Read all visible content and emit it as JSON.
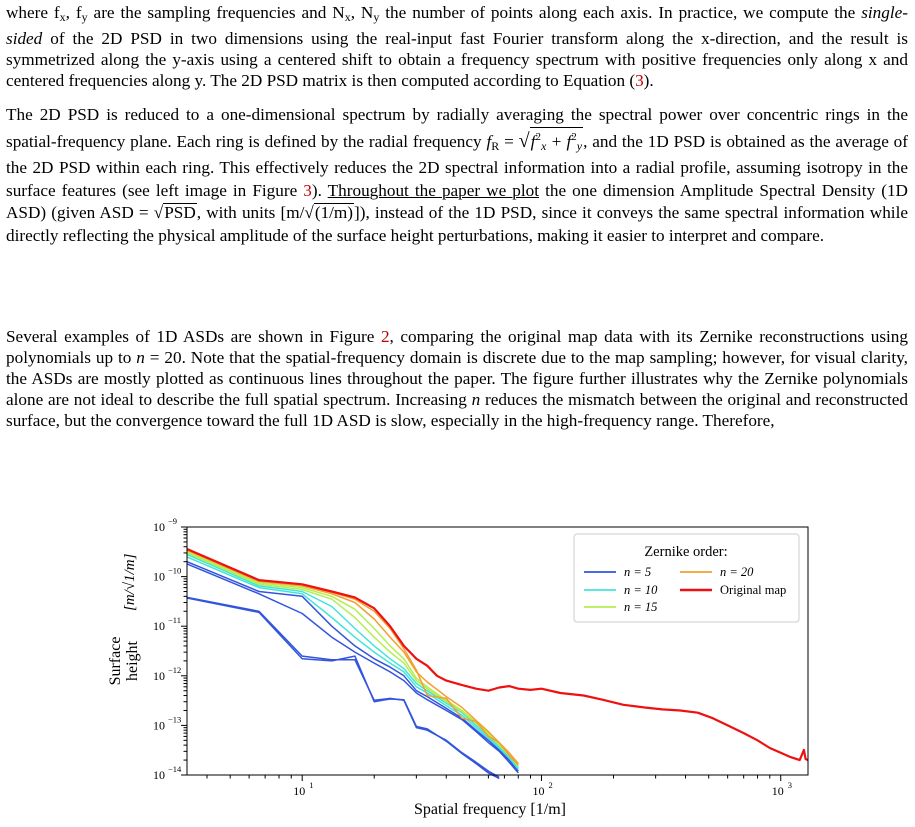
{
  "paragraphs": {
    "p1": {
      "l1a": "where f",
      "l1b": "x",
      "l1c": ", f",
      "l1d": "y",
      "l1e": " are the sampling frequencies and N",
      "l1f": "x",
      "l1g": ", N",
      "l1h": "y",
      "l1i": " the number of points along each axis. In practice, we compute the ",
      "em": "single-sided",
      "l2": " of the 2D PSD in two dimensions using the real-input fast Fourier transform along the x-direction, and the result is symmetrized along the y-axis using a centered shift to obtain a frequency spectrum with positive frequencies only along x and centered frequencies along y. The 2D PSD matrix is then computed according to Equation (",
      "ref": "3",
      "end": ")."
    },
    "p2": {
      "a": "The 2D PSD is reduced to a one-dimensional spectrum by radially averaging the spectral power over concentric rings in the spatial-frequency plane.  Each ring is defined by the radial frequency ",
      "fr": "f",
      "frsub": "R",
      "eq": " = ",
      "sq_a": "f",
      "sq_b": "2",
      "sq_c": "x",
      "sq_d": " + f",
      "sq_e": "2",
      "sq_f": "y",
      "b": ", and the 1D PSD is obtained as the average of the 2D PSD within each ring. This effectively reduces the 2D spectral information into a radial profile, assuming isotropy in the surface features (see left image in Figure ",
      "ref": "3",
      "c": "). ",
      "ul": "Throughout the paper we plot",
      "d": " the one dimension Amplitude Spectral Density (1D ASD) (given ASD = ",
      "psd": "PSD",
      "e": ", with units [m/",
      "unit": "(1/m)",
      "f": "]), instead of the 1D PSD, since it conveys the same spectral information while directly reflecting the physical amplitude of the surface height perturbations, making it easier to interpret and compare."
    },
    "p3": {
      "a": "Several examples of 1D ASDs are shown in Figure ",
      "ref": "2",
      "b": ", comparing the original map data with its Zernike reconstructions using polynomials up to ",
      "n1": "n",
      "c": " = 20. Note that the spatial-frequency domain is discrete due to the map sampling; however, for visual clarity, the ASDs are mostly plotted as continuous lines throughout the paper. The figure further illustrates why the Zernike polynomials alone are not ideal to describe the full spatial spectrum. Increasing ",
      "n2": "n",
      "d": " reduces the mismatch between the original and reconstructed surface, but the convergence toward the full 1D ASD is slow, especially in the high-frequency range. Therefore,"
    }
  },
  "chart_data": {
    "type": "line",
    "xlabel": "Spatial frequency [1/m]",
    "ylabel_line1": "Surface",
    "ylabel_line2": "height",
    "ylabel_unit": "[m/√1/m]",
    "x_scale": "log",
    "y_scale": "log",
    "xlim": [
      3.3,
      1300
    ],
    "ylim": [
      1e-14,
      1e-09
    ],
    "x_ticks": [
      {
        "v": 10,
        "label": "10",
        "exp": "1"
      },
      {
        "v": 100,
        "label": "10",
        "exp": "2"
      },
      {
        "v": 1000,
        "label": "10",
        "exp": "3"
      }
    ],
    "y_ticks": [
      {
        "v": 1e-09,
        "label": "10",
        "exp": "−9"
      },
      {
        "v": 1e-10,
        "label": "10",
        "exp": "−10"
      },
      {
        "v": 1e-11,
        "label": "10",
        "exp": "−11"
      },
      {
        "v": 1e-12,
        "label": "10",
        "exp": "−12"
      },
      {
        "v": 1e-13,
        "label": "10",
        "exp": "−13"
      },
      {
        "v": 1e-14,
        "label": "10",
        "exp": "−14"
      }
    ],
    "legend_title": "Zernike order:",
    "legend_position": "top-right",
    "legend": [
      {
        "label": "n = 5",
        "color": "#3355dd"
      },
      {
        "label": "n = 10",
        "color": "#44e4d8"
      },
      {
        "label": "n = 15",
        "color": "#b4ee55"
      },
      {
        "label": "n = 20",
        "color": "#f2a030"
      },
      {
        "label": "Original map",
        "color": "#ee1111"
      }
    ],
    "series": [
      {
        "label": "n = 5",
        "color": "#3355dd",
        "points": [
          [
            3.3,
            3.8e-11
          ],
          [
            6.6,
            2e-11
          ],
          [
            10,
            2.5e-12
          ],
          [
            13.3,
            2.1e-12
          ],
          [
            16.6,
            2.1e-12
          ],
          [
            20,
            3.2e-13
          ],
          [
            23.3,
            3.5e-13
          ],
          [
            26.6,
            3.2e-13
          ],
          [
            30,
            9e-14
          ],
          [
            33.3,
            8e-14
          ],
          [
            40,
            5e-14
          ],
          [
            46.6,
            2.8e-14
          ],
          [
            53.3,
            1.8e-14
          ],
          [
            60,
            1.2e-14
          ],
          [
            66.6,
            9e-15
          ]
        ]
      },
      {
        "label": "n = 5",
        "color": "#3355dd",
        "points": [
          [
            3.3,
            3.7e-11
          ],
          [
            6.6,
            1.9e-11
          ],
          [
            10,
            2.2e-12
          ],
          [
            13.3,
            2e-12
          ],
          [
            16.6,
            2.5e-12
          ],
          [
            20,
            3e-13
          ],
          [
            23.3,
            3.4e-13
          ],
          [
            26.6,
            3.3e-13
          ],
          [
            30,
            9.5e-14
          ],
          [
            33.3,
            8.5e-14
          ],
          [
            40,
            4.8e-14
          ],
          [
            46.6,
            2.7e-14
          ],
          [
            53.3,
            1.7e-14
          ],
          [
            60,
            1.1e-14
          ],
          [
            66.6,
            8.5e-15
          ]
        ]
      },
      {
        "label": "n = 5",
        "color": "#3355dd",
        "points": [
          [
            3.3,
            1.8e-10
          ],
          [
            6.6,
            4.5e-11
          ],
          [
            10,
            1.8e-11
          ],
          [
            13.3,
            6e-12
          ],
          [
            16.6,
            3e-12
          ],
          [
            20,
            1.8e-12
          ],
          [
            23.3,
            1.2e-12
          ],
          [
            26.6,
            8e-13
          ],
          [
            30,
            4.5e-13
          ],
          [
            33.3,
            3.3e-13
          ],
          [
            40,
            2e-13
          ],
          [
            46.6,
            1.3e-13
          ],
          [
            53.3,
            7.5e-14
          ],
          [
            60,
            4.5e-14
          ],
          [
            66.6,
            3e-14
          ],
          [
            73.3,
            1.8e-14
          ],
          [
            80,
            1.1e-14
          ]
        ]
      },
      {
        "label": "n = 5",
        "color": "#3355dd",
        "points": [
          [
            3.3,
            2e-10
          ],
          [
            6.6,
            5e-11
          ],
          [
            10,
            4e-11
          ],
          [
            13.3,
            1e-11
          ],
          [
            16.6,
            4e-12
          ],
          [
            20,
            2.2e-12
          ],
          [
            23.3,
            1.5e-12
          ],
          [
            26.6,
            1e-12
          ],
          [
            30,
            5e-13
          ],
          [
            33.3,
            3.8e-13
          ],
          [
            40,
            2.2e-13
          ],
          [
            46.6,
            1.4e-13
          ],
          [
            53.3,
            8e-14
          ],
          [
            60,
            5e-14
          ],
          [
            66.6,
            3.2e-14
          ],
          [
            73.3,
            2e-14
          ],
          [
            80,
            1.2e-14
          ]
        ]
      },
      {
        "label": "n = 10",
        "color": "#44e4d8",
        "points": [
          [
            3.3,
            2.5e-10
          ],
          [
            6.6,
            6e-11
          ],
          [
            10,
            4.5e-11
          ],
          [
            13.3,
            1.5e-11
          ],
          [
            16.6,
            6e-12
          ],
          [
            20,
            3e-12
          ],
          [
            23.3,
            1.8e-12
          ],
          [
            26.6,
            1.2e-12
          ],
          [
            30,
            6e-13
          ],
          [
            33.3,
            4.5e-13
          ],
          [
            40,
            2.5e-13
          ],
          [
            46.6,
            1.6e-13
          ],
          [
            53.3,
            9e-14
          ],
          [
            60,
            5.5e-14
          ],
          [
            66.6,
            3.5e-14
          ],
          [
            73.3,
            2.2e-14
          ],
          [
            80,
            1.3e-14
          ]
        ]
      },
      {
        "label": "n = 10",
        "color": "#44e4d8",
        "points": [
          [
            3.3,
            2.8e-10
          ],
          [
            6.6,
            6.5e-11
          ],
          [
            10,
            5e-11
          ],
          [
            13.3,
            2.5e-11
          ],
          [
            16.6,
            9e-12
          ],
          [
            20,
            4e-12
          ],
          [
            23.3,
            2.2e-12
          ],
          [
            26.6,
            1.4e-12
          ],
          [
            30,
            7e-13
          ],
          [
            33.3,
            5e-13
          ],
          [
            40,
            2.8e-13
          ],
          [
            46.6,
            1.8e-13
          ],
          [
            53.3,
            1e-13
          ],
          [
            60,
            6e-14
          ],
          [
            66.6,
            3.8e-14
          ],
          [
            73.3,
            2.4e-14
          ],
          [
            80,
            1.4e-14
          ]
        ]
      },
      {
        "label": "n = 15",
        "color": "#b4ee55",
        "points": [
          [
            3.3,
            3e-10
          ],
          [
            6.6,
            7e-11
          ],
          [
            10,
            5.5e-11
          ],
          [
            13.3,
            3.5e-11
          ],
          [
            16.6,
            1.5e-11
          ],
          [
            20,
            6e-12
          ],
          [
            23.3,
            3e-12
          ],
          [
            26.6,
            1.8e-12
          ],
          [
            30,
            8e-13
          ],
          [
            33.3,
            5.5e-13
          ],
          [
            40,
            3e-13
          ],
          [
            46.6,
            1.9e-13
          ],
          [
            53.3,
            1.1e-13
          ],
          [
            60,
            6.5e-14
          ],
          [
            66.6,
            4e-14
          ],
          [
            73.3,
            2.5e-14
          ],
          [
            80,
            1.5e-14
          ]
        ]
      },
      {
        "label": "n = 15",
        "color": "#b4ee55",
        "points": [
          [
            3.3,
            3.2e-10
          ],
          [
            6.6,
            7.5e-11
          ],
          [
            10,
            6e-11
          ],
          [
            13.3,
            4e-11
          ],
          [
            16.6,
            2.2e-11
          ],
          [
            20,
            9e-12
          ],
          [
            23.3,
            4e-12
          ],
          [
            26.6,
            2.2e-12
          ],
          [
            30,
            9e-13
          ],
          [
            33.3,
            6e-13
          ],
          [
            40,
            3.2e-13
          ],
          [
            46.6,
            2e-13
          ],
          [
            53.3,
            1.15e-13
          ],
          [
            60,
            7e-14
          ],
          [
            66.6,
            4.2e-14
          ],
          [
            73.3,
            2.6e-14
          ],
          [
            80,
            1.6e-14
          ]
        ]
      },
      {
        "label": "n = 20",
        "color": "#f2a030",
        "points": [
          [
            3.3,
            3.4e-10
          ],
          [
            6.6,
            8e-11
          ],
          [
            10,
            6.5e-11
          ],
          [
            13.3,
            4.5e-11
          ],
          [
            16.6,
            3e-11
          ],
          [
            20,
            1.4e-11
          ],
          [
            23.3,
            6e-12
          ],
          [
            26.6,
            3e-12
          ],
          [
            30,
            1.2e-12
          ],
          [
            33.3,
            7.5e-13
          ],
          [
            40,
            3.8e-13
          ],
          [
            46.6,
            2.3e-13
          ],
          [
            53.3,
            1.25e-13
          ],
          [
            60,
            7.5e-14
          ],
          [
            66.6,
            4.5e-14
          ],
          [
            73.3,
            2.8e-14
          ],
          [
            80,
            1.7e-14
          ]
        ]
      },
      {
        "label": "n = 20",
        "color": "#f2a030",
        "points": [
          [
            3.3,
            3.5e-10
          ],
          [
            6.6,
            8.2e-11
          ],
          [
            10,
            6.8e-11
          ],
          [
            13.3,
            4.8e-11
          ],
          [
            16.6,
            3.5e-11
          ],
          [
            20,
            2e-11
          ],
          [
            23.3,
            9e-12
          ],
          [
            26.6,
            3.5e-12
          ],
          [
            30,
            1.3e-12
          ],
          [
            33.3,
            4e-13
          ],
          [
            40,
            3.5e-13
          ],
          [
            46.6,
            1.4e-13
          ],
          [
            53.3,
            1.2e-13
          ],
          [
            60,
            6e-14
          ],
          [
            66.6,
            4.5e-14
          ],
          [
            73.3,
            2.5e-14
          ],
          [
            80,
            1.6e-14
          ]
        ]
      },
      {
        "label": "Original map",
        "color": "#ee1111",
        "points": [
          [
            3.3,
            3.6e-10
          ],
          [
            6.6,
            8.5e-11
          ],
          [
            10,
            7e-11
          ],
          [
            13.3,
            5e-11
          ],
          [
            16.6,
            3.8e-11
          ],
          [
            20,
            2.3e-11
          ],
          [
            23.3,
            1e-11
          ],
          [
            26.6,
            4e-12
          ],
          [
            30,
            2.2e-12
          ],
          [
            33.3,
            1.6e-12
          ],
          [
            36.6,
            1e-12
          ],
          [
            40,
            8e-13
          ],
          [
            46.6,
            6.5e-13
          ],
          [
            53.3,
            5.5e-13
          ],
          [
            60,
            5e-13
          ],
          [
            66.6,
            5.8e-13
          ],
          [
            73.3,
            6.2e-13
          ],
          [
            80,
            5.5e-13
          ],
          [
            90,
            5.2e-13
          ],
          [
            100,
            5.5e-13
          ],
          [
            120,
            4.5e-13
          ],
          [
            150,
            4e-13
          ],
          [
            180,
            3.3e-13
          ],
          [
            220,
            2.6e-13
          ],
          [
            270,
            2.3e-13
          ],
          [
            320,
            2.1e-13
          ],
          [
            380,
            2e-13
          ],
          [
            450,
            1.8e-13
          ],
          [
            520,
            1.4e-13
          ],
          [
            600,
            1e-13
          ],
          [
            700,
            7e-14
          ],
          [
            800,
            5e-14
          ],
          [
            900,
            3.5e-14
          ],
          [
            1000,
            2.8e-14
          ],
          [
            1100,
            2.3e-14
          ],
          [
            1200,
            2e-14
          ],
          [
            1250,
            3.2e-14
          ],
          [
            1270,
            2.1e-14
          ],
          [
            1300,
            2e-14
          ]
        ]
      }
    ]
  }
}
